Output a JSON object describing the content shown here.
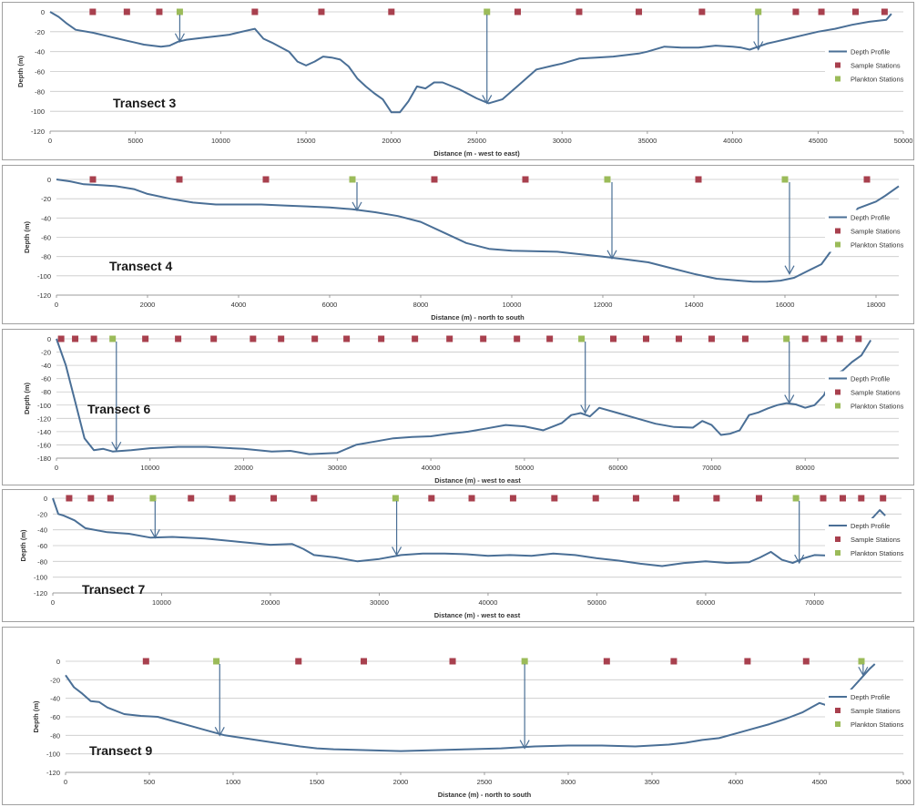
{
  "colors": {
    "profile": "#4a6f96",
    "sample": "#a8404e",
    "plankton": "#9bbb59",
    "grid": "#c8c8c8",
    "frame": "#a0a0a0",
    "text": "#333333"
  },
  "legend": {
    "profile": "Depth Profile",
    "sample": "Sample Stations",
    "plankton": "Plankton Stations"
  },
  "chart_data": [
    {
      "type": "line",
      "annotation": "Transect 3",
      "xlabel": "Distance  (m - west to east)",
      "ylabel": "Depth (m)",
      "xlim": [
        0,
        50000
      ],
      "ylim": [
        -120,
        0
      ],
      "xticks": [
        0,
        5000,
        10000,
        15000,
        20000,
        25000,
        30000,
        35000,
        40000,
        45000,
        50000
      ],
      "yticks": [
        0,
        -20,
        -40,
        -60,
        -80,
        -100,
        -120
      ],
      "grid": true,
      "legend_position": "right",
      "profile": {
        "x": [
          0,
          500,
          1000,
          1500,
          2500,
          3500,
          4500,
          5000,
          5500,
          6000,
          6500,
          7000,
          7500,
          8000,
          9000,
          10000,
          10500,
          11000,
          11500,
          12000,
          12500,
          13000,
          14000,
          14500,
          15000,
          15500,
          16000,
          16500,
          17000,
          17500,
          18000,
          18500,
          19000,
          19500,
          20000,
          20500,
          21000,
          21500,
          22000,
          22500,
          23000,
          24000,
          25000,
          25700,
          26500,
          27500,
          28500,
          29500,
          30000,
          31000,
          32000,
          33000,
          34000,
          34500,
          35000,
          36000,
          37000,
          38000,
          39000,
          40000,
          40500,
          41000,
          41500,
          42000,
          42500,
          43000,
          43500,
          44000,
          45000,
          46000,
          47000,
          48000,
          49000,
          49300
        ],
        "y": [
          0,
          -5,
          -12,
          -18,
          -21,
          -25,
          -29,
          -31,
          -33,
          -34,
          -35,
          -34,
          -30,
          -28,
          -26,
          -24,
          -23,
          -21,
          -19,
          -17,
          -27,
          -31,
          -40,
          -50,
          -54,
          -50,
          -45,
          -46,
          -48,
          -55,
          -67,
          -75,
          -82,
          -88,
          -101,
          -101,
          -90,
          -75,
          -77,
          -71,
          -71,
          -78,
          -87,
          -92,
          -88,
          -73,
          -58,
          -54,
          -52,
          -47,
          -46,
          -45,
          -43,
          -42,
          -40,
          -35,
          -36,
          -36,
          -34,
          -35,
          -36,
          -38,
          -35,
          -32,
          -30,
          -28,
          -26,
          -24,
          -20,
          -17,
          -13,
          -10,
          -8,
          -2
        ]
      },
      "sample_stations": [
        2500,
        4500,
        6400,
        12000,
        15900,
        20000,
        27400,
        31000,
        34500,
        38200,
        43700,
        45200,
        47200,
        48900
      ],
      "plankton_stations": [
        7600,
        25600,
        41500
      ],
      "arrows": [
        {
          "x": 7600,
          "y": -30
        },
        {
          "x": 25600,
          "y": -92
        },
        {
          "x": 41500,
          "y": -38
        }
      ]
    },
    {
      "type": "line",
      "annotation": "Transect 4",
      "xlabel": "Distance  (m) - north to south",
      "ylabel": "Depth (m)",
      "xlim": [
        0,
        18500
      ],
      "ylim": [
        -120,
        0
      ],
      "xticks": [
        0,
        2000,
        4000,
        6000,
        8000,
        10000,
        12000,
        14000,
        16000,
        18000
      ],
      "yticks": [
        0,
        -20,
        -40,
        -60,
        -80,
        -100,
        -120
      ],
      "grid": true,
      "legend_position": "right",
      "profile": {
        "x": [
          0,
          300,
          600,
          1000,
          1300,
          1700,
          2000,
          2500,
          3000,
          3500,
          4000,
          4500,
          5000,
          5500,
          6000,
          6500,
          7000,
          7500,
          8000,
          8500,
          9000,
          9500,
          10000,
          11000,
          12000,
          12500,
          13000,
          13500,
          14000,
          14500,
          15000,
          15300,
          15600,
          15900,
          16200,
          16500,
          16800,
          17000,
          17300,
          17600,
          18000,
          18200,
          18500
        ],
        "y": [
          0,
          -2,
          -5,
          -6,
          -7,
          -10,
          -15,
          -20,
          -24,
          -26,
          -26,
          -26,
          -27,
          -28,
          -29,
          -31,
          -34,
          -38,
          -44,
          -55,
          -66,
          -72,
          -74,
          -75,
          -80,
          -83,
          -86,
          -92,
          -98,
          -103,
          -105,
          -106,
          -106,
          -105,
          -102,
          -95,
          -88,
          -75,
          -50,
          -30,
          -23,
          -17,
          -7
        ]
      },
      "sample_stations": [
        800,
        2700,
        4600,
        8300,
        10300,
        14100,
        17800
      ],
      "plankton_stations": [
        6500,
        12100,
        16000
      ],
      "arrows": [
        {
          "x": 6600,
          "y": -32
        },
        {
          "x": 12200,
          "y": -82
        },
        {
          "x": 16100,
          "y": -98
        }
      ]
    },
    {
      "type": "line",
      "annotation": "Transect 6",
      "xlabel": "Distance  (m) - west to east",
      "ylabel": "Depth (m)",
      "xlim": [
        0,
        90000
      ],
      "ylim": [
        -180,
        0
      ],
      "xticks": [
        0,
        10000,
        20000,
        30000,
        40000,
        50000,
        60000,
        70000,
        80000
      ],
      "yticks": [
        0,
        -20,
        -40,
        -60,
        -80,
        -100,
        -120,
        -140,
        -160,
        -180
      ],
      "grid": true,
      "legend_position": "right",
      "profile": {
        "x": [
          0,
          1000,
          2000,
          3000,
          4000,
          5000,
          6000,
          8000,
          10000,
          13000,
          16000,
          20000,
          23000,
          25000,
          27000,
          30000,
          32000,
          34000,
          36000,
          38000,
          40000,
          42000,
          44000,
          46000,
          48000,
          50000,
          52000,
          54000,
          55000,
          56000,
          57000,
          58000,
          60000,
          62000,
          64000,
          66000,
          68000,
          69000,
          70000,
          71000,
          72000,
          73000,
          74000,
          75000,
          76000,
          77000,
          78000,
          79000,
          80000,
          81000,
          82000,
          83000,
          84000,
          85000,
          86000,
          87000
        ],
        "y": [
          0,
          -40,
          -95,
          -150,
          -168,
          -166,
          -170,
          -168,
          -165,
          -163,
          -163,
          -166,
          -170,
          -169,
          -174,
          -172,
          -160,
          -155,
          -150,
          -148,
          -147,
          -143,
          -140,
          -135,
          -130,
          -132,
          -138,
          -127,
          -115,
          -112,
          -117,
          -104,
          -112,
          -120,
          -128,
          -133,
          -134,
          -124,
          -130,
          -145,
          -143,
          -138,
          -115,
          -111,
          -105,
          -100,
          -97,
          -99,
          -104,
          -100,
          -85,
          -55,
          -48,
          -35,
          -25,
          -2
        ]
      },
      "sample_stations": [
        500,
        2000,
        4000,
        9500,
        13000,
        16800,
        21000,
        24000,
        27600,
        31000,
        34700,
        38300,
        42000,
        45600,
        49200,
        52700,
        59500,
        63000,
        66500,
        70000,
        73600,
        80000,
        82000,
        83700,
        85700
      ],
      "plankton_stations": [
        6000,
        56100,
        78000
      ],
      "arrows": [
        {
          "x": 6400,
          "y": -168
        },
        {
          "x": 56500,
          "y": -112
        },
        {
          "x": 78300,
          "y": -97
        }
      ]
    },
    {
      "type": "line",
      "annotation": "Transect 7",
      "xlabel": "Distance  (m) - west to east",
      "ylabel": "Depth (m)",
      "xlim": [
        0,
        78000
      ],
      "ylim": [
        -120,
        0
      ],
      "xticks": [
        0,
        10000,
        20000,
        30000,
        40000,
        50000,
        60000,
        70000
      ],
      "yticks": [
        0,
        -20,
        -40,
        -60,
        -80,
        -100,
        -120
      ],
      "grid": true,
      "legend_position": "right",
      "profile": {
        "x": [
          0,
          500,
          1000,
          2000,
          3000,
          5000,
          7000,
          9000,
          11000,
          14000,
          17000,
          20000,
          22000,
          23000,
          24000,
          26000,
          28000,
          30000,
          32000,
          34000,
          36000,
          38000,
          40000,
          42000,
          44000,
          46000,
          48000,
          49000,
          50000,
          52000,
          54000,
          56000,
          58000,
          60000,
          62000,
          64000,
          65000,
          66000,
          67000,
          68000,
          69000,
          70000,
          72000,
          73000,
          74000,
          75000,
          76000,
          76500
        ],
        "y": [
          0,
          -20,
          -22,
          -28,
          -38,
          -43,
          -45,
          -50,
          -49,
          -51,
          -55,
          -59,
          -58,
          -64,
          -72,
          -75,
          -80,
          -77,
          -72,
          -70,
          -70,
          -71,
          -73,
          -72,
          -73,
          -70,
          -72,
          -74,
          -76,
          -79,
          -83,
          -86,
          -82,
          -80,
          -82,
          -81,
          -75,
          -68,
          -78,
          -82,
          -76,
          -72,
          -73,
          -65,
          -45,
          -30,
          -15,
          -22
        ]
      },
      "sample_stations": [
        1500,
        3500,
        5300,
        12700,
        16500,
        20300,
        24000,
        34800,
        38500,
        42300,
        46100,
        49900,
        53600,
        57300,
        61000,
        64900,
        70800,
        72600,
        74300,
        76300
      ],
      "plankton_stations": [
        9200,
        31500,
        68300
      ],
      "arrows": [
        {
          "x": 9400,
          "y": -50
        },
        {
          "x": 31600,
          "y": -72
        },
        {
          "x": 68600,
          "y": -82
        }
      ]
    },
    {
      "type": "line",
      "annotation": "Transect 9",
      "xlabel": "Distance  (m) - north to south",
      "ylabel": "Depth (m)",
      "xlim": [
        0,
        5000
      ],
      "ylim": [
        -120,
        0
      ],
      "xticks": [
        0,
        500,
        1000,
        1500,
        2000,
        2500,
        3000,
        3500,
        4000,
        4500,
        5000
      ],
      "yticks": [
        0,
        -20,
        -40,
        -60,
        -80,
        -100,
        -120
      ],
      "grid": true,
      "legend_position": "right",
      "profile": {
        "x": [
          0,
          50,
          100,
          150,
          200,
          250,
          350,
          450,
          550,
          650,
          750,
          850,
          950,
          1100,
          1250,
          1400,
          1500,
          1600,
          1800,
          2000,
          2200,
          2400,
          2600,
          2800,
          3000,
          3200,
          3400,
          3600,
          3700,
          3800,
          3900,
          4000,
          4100,
          4200,
          4300,
          4400,
          4450,
          4500,
          4550,
          4600,
          4650,
          4700,
          4750,
          4800,
          4830
        ],
        "y": [
          -15,
          -28,
          -35,
          -43,
          -44,
          -50,
          -57,
          -59,
          -60,
          -65,
          -70,
          -75,
          -80,
          -84,
          -88,
          -92,
          -94,
          -95,
          -96,
          -97,
          -96,
          -95,
          -94,
          -92,
          -91,
          -91,
          -92,
          -90,
          -88,
          -85,
          -83,
          -78,
          -73,
          -68,
          -62,
          -55,
          -50,
          -45,
          -48,
          -46,
          -38,
          -28,
          -18,
          -8,
          -3
        ]
      },
      "sample_stations": [
        480,
        1390,
        1780,
        2310,
        3230,
        3630,
        4070,
        4420
      ],
      "plankton_stations": [
        900,
        2740,
        4750
      ],
      "arrows": [
        {
          "x": 920,
          "y": -80
        },
        {
          "x": 2740,
          "y": -94
        },
        {
          "x": 4760,
          "y": -15
        }
      ]
    }
  ]
}
